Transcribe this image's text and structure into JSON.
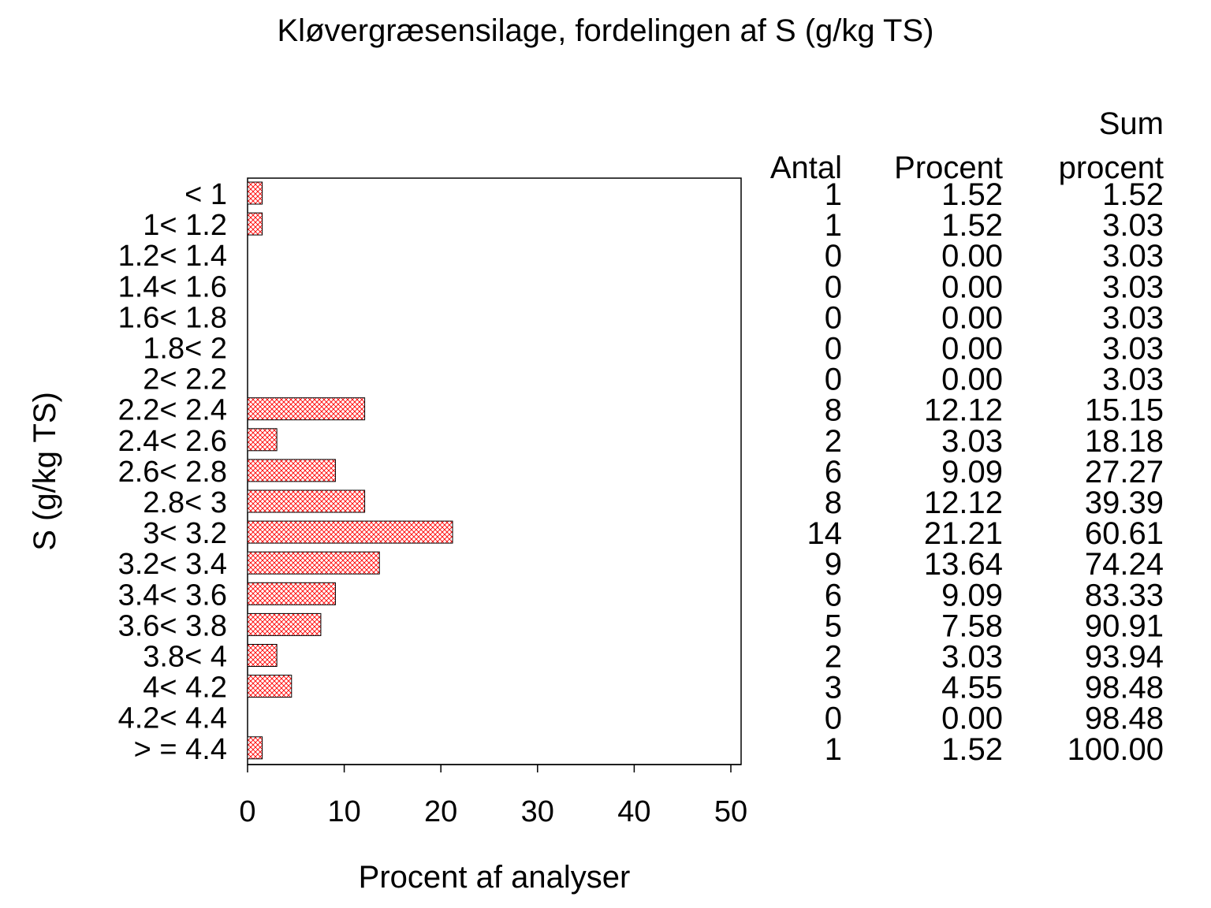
{
  "chart_data": {
    "type": "bar",
    "orientation": "horizontal",
    "title": "Kløvergræsensilage, fordelingen af S (g/kg TS)",
    "xlabel": "Procent af analyser",
    "ylabel": "S (g/kg TS)",
    "xlim": [
      0,
      51
    ],
    "xticks": [
      "0",
      "10",
      "20",
      "30",
      "40",
      "50"
    ],
    "bar_color": "#ff0000",
    "bar_pattern": "crosshatch",
    "grid": false,
    "categories": [
      "< 1",
      "1< 1.2",
      "1.2< 1.4",
      "1.4< 1.6",
      "1.6< 1.8",
      "1.8< 2",
      "2< 2.2",
      "2.2< 2.4",
      "2.4< 2.6",
      "2.6< 2.8",
      "2.8< 3",
      "3< 3.2",
      "3.2< 3.4",
      "3.4< 3.6",
      "3.6< 3.8",
      "3.8< 4",
      "4< 4.2",
      "4.2< 4.4",
      "> = 4.4"
    ],
    "values": [
      1.52,
      1.52,
      0,
      0,
      0,
      0,
      0,
      12.12,
      3.03,
      9.09,
      12.12,
      21.21,
      13.64,
      9.09,
      7.58,
      3.03,
      4.55,
      0,
      1.52
    ],
    "table": {
      "headers": {
        "antal": "Antal",
        "procent": "Procent",
        "sum_line1": "Sum",
        "sum_line2": "procent"
      },
      "antal": [
        "1",
        "1",
        "0",
        "0",
        "0",
        "0",
        "0",
        "8",
        "2",
        "6",
        "8",
        "14",
        "9",
        "6",
        "5",
        "2",
        "3",
        "0",
        "1"
      ],
      "procent": [
        "1.52",
        "1.52",
        "0.00",
        "0.00",
        "0.00",
        "0.00",
        "0.00",
        "12.12",
        "3.03",
        "9.09",
        "12.12",
        "21.21",
        "13.64",
        "9.09",
        "7.58",
        "3.03",
        "4.55",
        "0.00",
        "1.52"
      ],
      "sum_procent": [
        "1.52",
        "3.03",
        "3.03",
        "3.03",
        "3.03",
        "3.03",
        "3.03",
        "15.15",
        "18.18",
        "27.27",
        "39.39",
        "60.61",
        "74.24",
        "83.33",
        "90.91",
        "93.94",
        "98.48",
        "98.48",
        "100.00"
      ]
    }
  }
}
